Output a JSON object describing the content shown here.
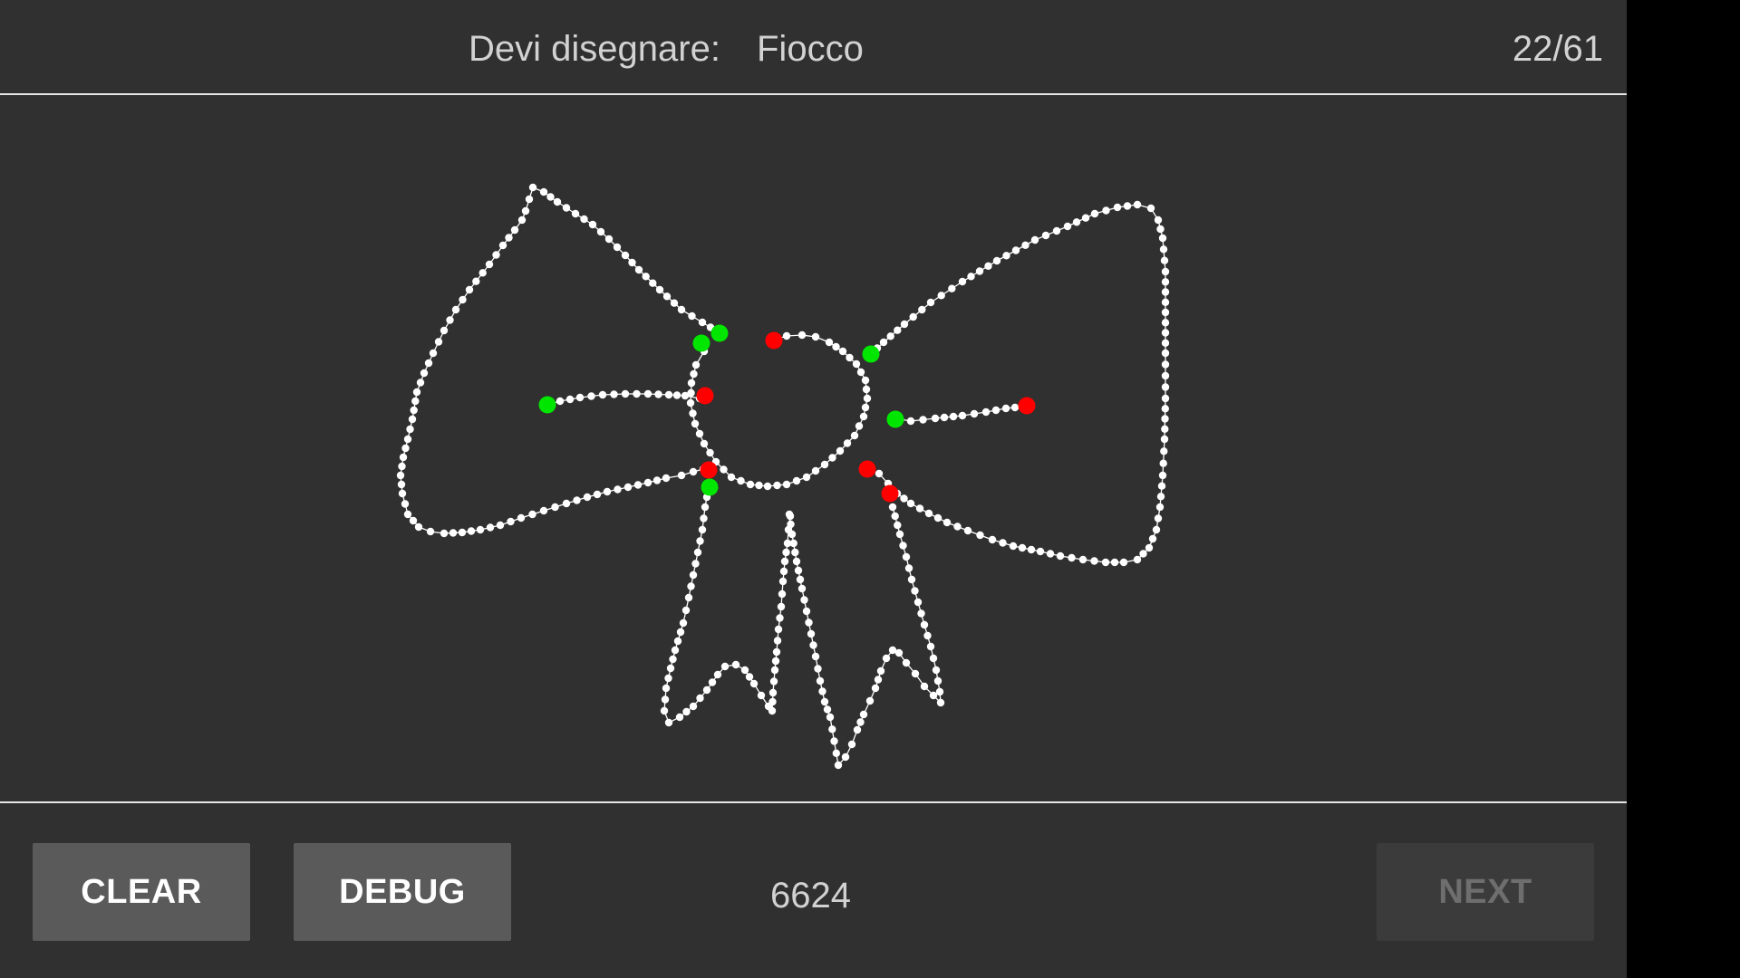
{
  "header": {
    "prompt_label": "Devi disegnare:",
    "prompt_word": "Fiocco",
    "progress": "22/61"
  },
  "footer": {
    "clear_label": "CLEAR",
    "debug_label": "DEBUG",
    "score": "6624",
    "next_label": "NEXT",
    "next_enabled": false
  },
  "colors": {
    "background": "#303030",
    "stroke": "#ffffff",
    "stroke_start": "#00e600",
    "stroke_end": "#ff0000",
    "button": "#5a5a5a",
    "button_disabled": "#3b3b3b"
  }
}
